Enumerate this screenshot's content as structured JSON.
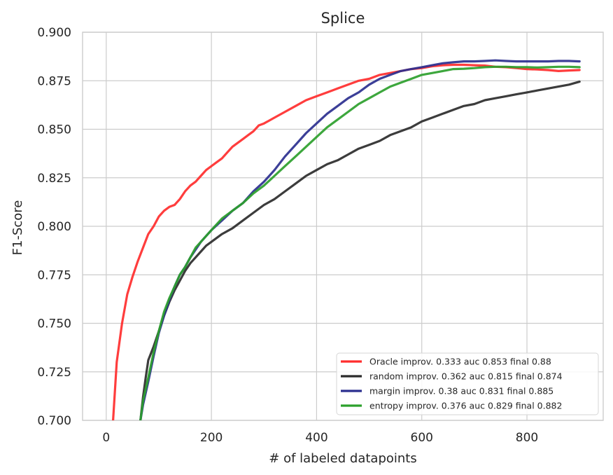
{
  "chart_data": {
    "type": "line",
    "title": "Splice",
    "xlabel": "# of labeled datapoints",
    "ylabel": "F1-Score",
    "xlim": [
      -45,
      945
    ],
    "ylim": [
      0.7,
      0.9
    ],
    "xticks": [
      0,
      200,
      400,
      600,
      800
    ],
    "xtick_labels": [
      "0",
      "200",
      "400",
      "600",
      "800"
    ],
    "yticks": [
      0.7,
      0.725,
      0.75,
      0.775,
      0.8,
      0.825,
      0.85,
      0.875,
      0.9
    ],
    "ytick_labels": [
      "0.700",
      "0.725",
      "0.750",
      "0.775",
      "0.800",
      "0.825",
      "0.850",
      "0.875",
      "0.900"
    ],
    "grid": true,
    "legend_position": "lower-right",
    "series": [
      {
        "name": "Oracle improv. 0.333 auc 0.853 final 0.88",
        "color": "#ff2d2d",
        "x": [
          13,
          20,
          30,
          40,
          50,
          60,
          70,
          80,
          90,
          100,
          110,
          120,
          130,
          140,
          150,
          160,
          170,
          180,
          190,
          200,
          210,
          220,
          230,
          240,
          250,
          260,
          270,
          280,
          290,
          300,
          320,
          340,
          360,
          380,
          400,
          420,
          440,
          460,
          480,
          500,
          520,
          540,
          560,
          580,
          600,
          620,
          640,
          660,
          680,
          700,
          720,
          740,
          760,
          780,
          800,
          820,
          840,
          860,
          880,
          900
        ],
        "y": [
          0.7,
          0.73,
          0.75,
          0.765,
          0.774,
          0.782,
          0.789,
          0.796,
          0.8,
          0.805,
          0.808,
          0.81,
          0.811,
          0.814,
          0.818,
          0.821,
          0.823,
          0.826,
          0.829,
          0.831,
          0.833,
          0.835,
          0.838,
          0.841,
          0.843,
          0.845,
          0.847,
          0.849,
          0.852,
          0.853,
          0.856,
          0.859,
          0.862,
          0.865,
          0.867,
          0.869,
          0.871,
          0.873,
          0.875,
          0.876,
          0.878,
          0.879,
          0.88,
          0.881,
          0.8815,
          0.8825,
          0.883,
          0.8832,
          0.8832,
          0.883,
          0.8828,
          0.8822,
          0.882,
          0.8815,
          0.881,
          0.8808,
          0.8805,
          0.88,
          0.8803,
          0.8805
        ]
      },
      {
        "name": "random improv. 0.362 auc 0.815 final 0.874",
        "color": "#2b2b2b",
        "x": [
          65,
          70,
          75,
          80,
          90,
          100,
          110,
          120,
          130,
          140,
          150,
          160,
          170,
          180,
          190,
          200,
          220,
          240,
          260,
          280,
          300,
          320,
          340,
          360,
          380,
          400,
          420,
          440,
          460,
          480,
          500,
          520,
          540,
          560,
          580,
          600,
          620,
          640,
          660,
          680,
          700,
          720,
          740,
          760,
          780,
          800,
          820,
          840,
          860,
          880,
          900
        ],
        "y": [
          0.7,
          0.712,
          0.722,
          0.731,
          0.738,
          0.746,
          0.754,
          0.761,
          0.767,
          0.772,
          0.777,
          0.781,
          0.784,
          0.787,
          0.79,
          0.792,
          0.796,
          0.799,
          0.803,
          0.807,
          0.811,
          0.814,
          0.818,
          0.822,
          0.826,
          0.829,
          0.832,
          0.834,
          0.837,
          0.84,
          0.842,
          0.844,
          0.847,
          0.849,
          0.851,
          0.854,
          0.856,
          0.858,
          0.86,
          0.862,
          0.863,
          0.865,
          0.866,
          0.867,
          0.868,
          0.869,
          0.87,
          0.871,
          0.872,
          0.873,
          0.8745
        ]
      },
      {
        "name": "margin improv. 0.38 auc 0.831 final 0.885",
        "color": "#2b2f8f",
        "x": [
          65,
          70,
          80,
          90,
          100,
          110,
          120,
          130,
          140,
          150,
          160,
          170,
          180,
          190,
          200,
          220,
          240,
          260,
          280,
          300,
          320,
          340,
          360,
          380,
          400,
          420,
          440,
          460,
          480,
          500,
          520,
          540,
          560,
          580,
          600,
          620,
          640,
          660,
          680,
          700,
          720,
          740,
          760,
          780,
          800,
          820,
          840,
          860,
          880,
          900
        ],
        "y": [
          0.7,
          0.708,
          0.72,
          0.733,
          0.745,
          0.754,
          0.762,
          0.769,
          0.775,
          0.779,
          0.784,
          0.788,
          0.792,
          0.795,
          0.798,
          0.803,
          0.808,
          0.812,
          0.818,
          0.823,
          0.829,
          0.836,
          0.842,
          0.848,
          0.853,
          0.858,
          0.862,
          0.866,
          0.869,
          0.873,
          0.876,
          0.878,
          0.88,
          0.881,
          0.882,
          0.883,
          0.884,
          0.8845,
          0.885,
          0.885,
          0.8852,
          0.8855,
          0.8852,
          0.885,
          0.885,
          0.885,
          0.885,
          0.8852,
          0.8852,
          0.885
        ]
      },
      {
        "name": "entropy improv. 0.376 auc 0.829 final 0.882",
        "color": "#2ca02c",
        "x": [
          65,
          70,
          80,
          90,
          100,
          110,
          120,
          130,
          140,
          150,
          160,
          170,
          180,
          190,
          200,
          220,
          240,
          260,
          280,
          300,
          320,
          340,
          360,
          380,
          400,
          420,
          440,
          460,
          480,
          500,
          520,
          540,
          560,
          580,
          600,
          620,
          640,
          660,
          680,
          700,
          720,
          740,
          760,
          780,
          800,
          820,
          840,
          860,
          880,
          900
        ],
        "y": [
          0.7,
          0.71,
          0.722,
          0.735,
          0.746,
          0.756,
          0.763,
          0.769,
          0.775,
          0.779,
          0.784,
          0.789,
          0.792,
          0.795,
          0.798,
          0.804,
          0.808,
          0.812,
          0.817,
          0.821,
          0.826,
          0.831,
          0.836,
          0.841,
          0.846,
          0.851,
          0.855,
          0.859,
          0.863,
          0.866,
          0.869,
          0.872,
          0.874,
          0.876,
          0.878,
          0.879,
          0.88,
          0.881,
          0.8812,
          0.8815,
          0.882,
          0.8822,
          0.8822,
          0.882,
          0.882,
          0.8818,
          0.882,
          0.8822,
          0.8822,
          0.882
        ]
      }
    ]
  }
}
